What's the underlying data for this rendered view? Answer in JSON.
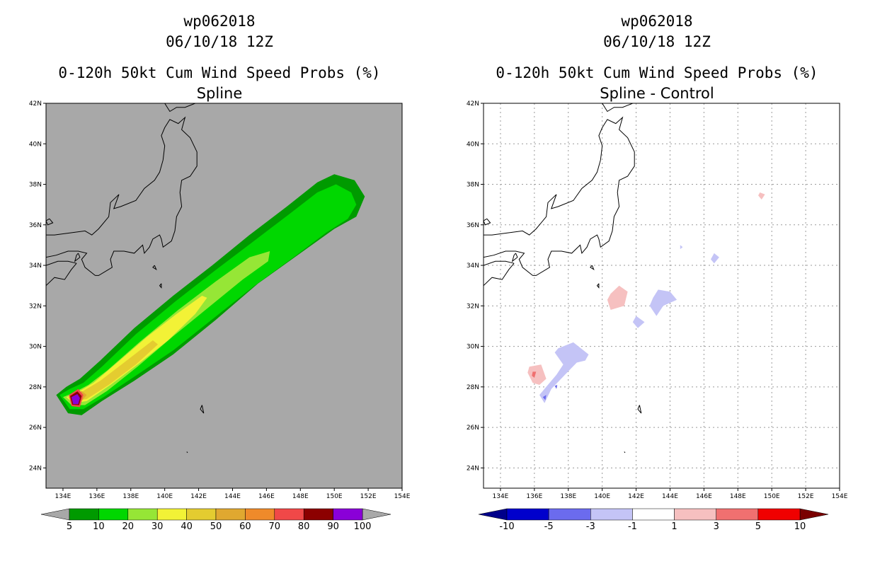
{
  "left": {
    "title": {
      "line1": "wp062018",
      "line2": "06/10/18 12Z",
      "line3": "0-120h 50kt Cum Wind Speed Probs (%)",
      "line4": "Spline"
    },
    "colorbar": {
      "labels": [
        "5",
        "10",
        "20",
        "30",
        "40",
        "50",
        "60",
        "70",
        "80",
        "90",
        "100"
      ],
      "colors": [
        "#009a00",
        "#00d700",
        "#96e636",
        "#f2f236",
        "#e4cc30",
        "#e0a830",
        "#ef8a2a",
        "#f04848",
        "#8c0000",
        "#8a00d8"
      ],
      "under_color": "#a8a8a8",
      "over_color": "#a8a8a8"
    },
    "map_colors": {
      "background": "#a8a8a8"
    }
  },
  "right": {
    "title": {
      "line1": "wp062018",
      "line2": "06/10/18 12Z",
      "line3": "0-120h 50kt Cum Wind Speed Probs (%)",
      "line4": "Spline - Control"
    },
    "colorbar": {
      "labels": [
        "-10",
        "-5",
        "-3",
        "-1",
        "1",
        "3",
        "5",
        "10"
      ],
      "colors": [
        "#0000cc",
        "#6b6bee",
        "#c4c4f6",
        "#ffffff",
        "#f6c0c0",
        "#f07070",
        "#f00000"
      ],
      "under_color": "#00008a",
      "over_color": "#7a0000"
    }
  },
  "axes": {
    "lon_labels": [
      "134E",
      "136E",
      "138E",
      "140E",
      "142E",
      "144E",
      "146E",
      "148E",
      "150E",
      "152E",
      "154E"
    ],
    "lat_labels": [
      "24N",
      "26N",
      "28N",
      "30N",
      "32N",
      "34N",
      "36N",
      "38N",
      "40N",
      "42N"
    ],
    "lon_range": [
      133,
      154
    ],
    "lat_range": [
      23,
      42
    ]
  }
}
